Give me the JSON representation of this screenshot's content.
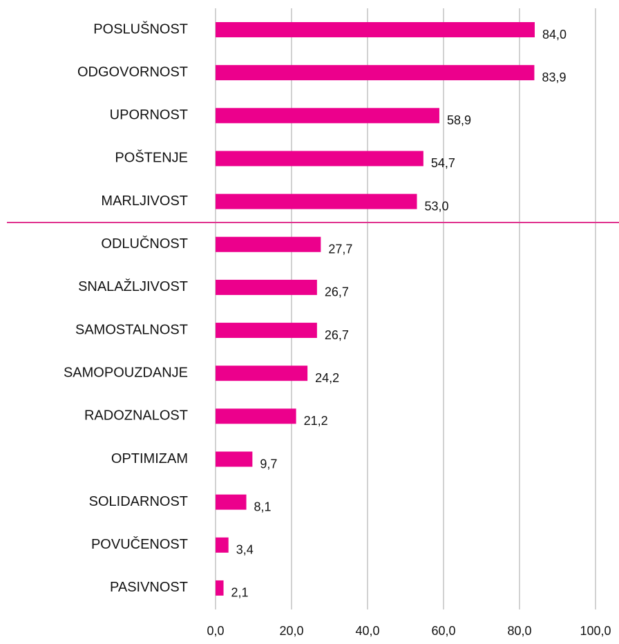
{
  "chart_data": {
    "type": "barh",
    "categories": [
      "POSLUŠNOST",
      "ODGOVORNOST",
      "UPORNOST",
      "POŠTENJE",
      "MARLJIVOST",
      "ODLUČNOST",
      "SNALAŽLJIVOST",
      "SAMOSTALNOST",
      "SAMOPOUZDANJE",
      "RADOZNALOST",
      "OPTIMIZAM",
      "SOLIDARNOST",
      "POVUČENOST",
      "PASIVNOST"
    ],
    "values": [
      84,
      83.9,
      58.9,
      54.7,
      53,
      27.7,
      26.7,
      26.7,
      24.2,
      21.2,
      9.7,
      8.1,
      3.4,
      2.1
    ],
    "value_labels": [
      "84,0",
      "83,9",
      "58,9",
      "54,7",
      "53,0",
      "27,7",
      "26,7",
      "26,7",
      "24,2",
      "21,2",
      "9,7",
      "8,1",
      "3,4",
      "2,1"
    ],
    "color": "#ec008c",
    "xlim": [
      0,
      100
    ],
    "xticks": [
      {
        "value": 0,
        "label": "0,0"
      },
      {
        "value": 20,
        "label": "20,0"
      },
      {
        "value": 40,
        "label": "40,0"
      },
      {
        "value": 60,
        "label": "60,0"
      },
      {
        "value": 80,
        "label": "80,0"
      },
      {
        "value": 100,
        "label": "100,0"
      }
    ],
    "grid": true
  }
}
